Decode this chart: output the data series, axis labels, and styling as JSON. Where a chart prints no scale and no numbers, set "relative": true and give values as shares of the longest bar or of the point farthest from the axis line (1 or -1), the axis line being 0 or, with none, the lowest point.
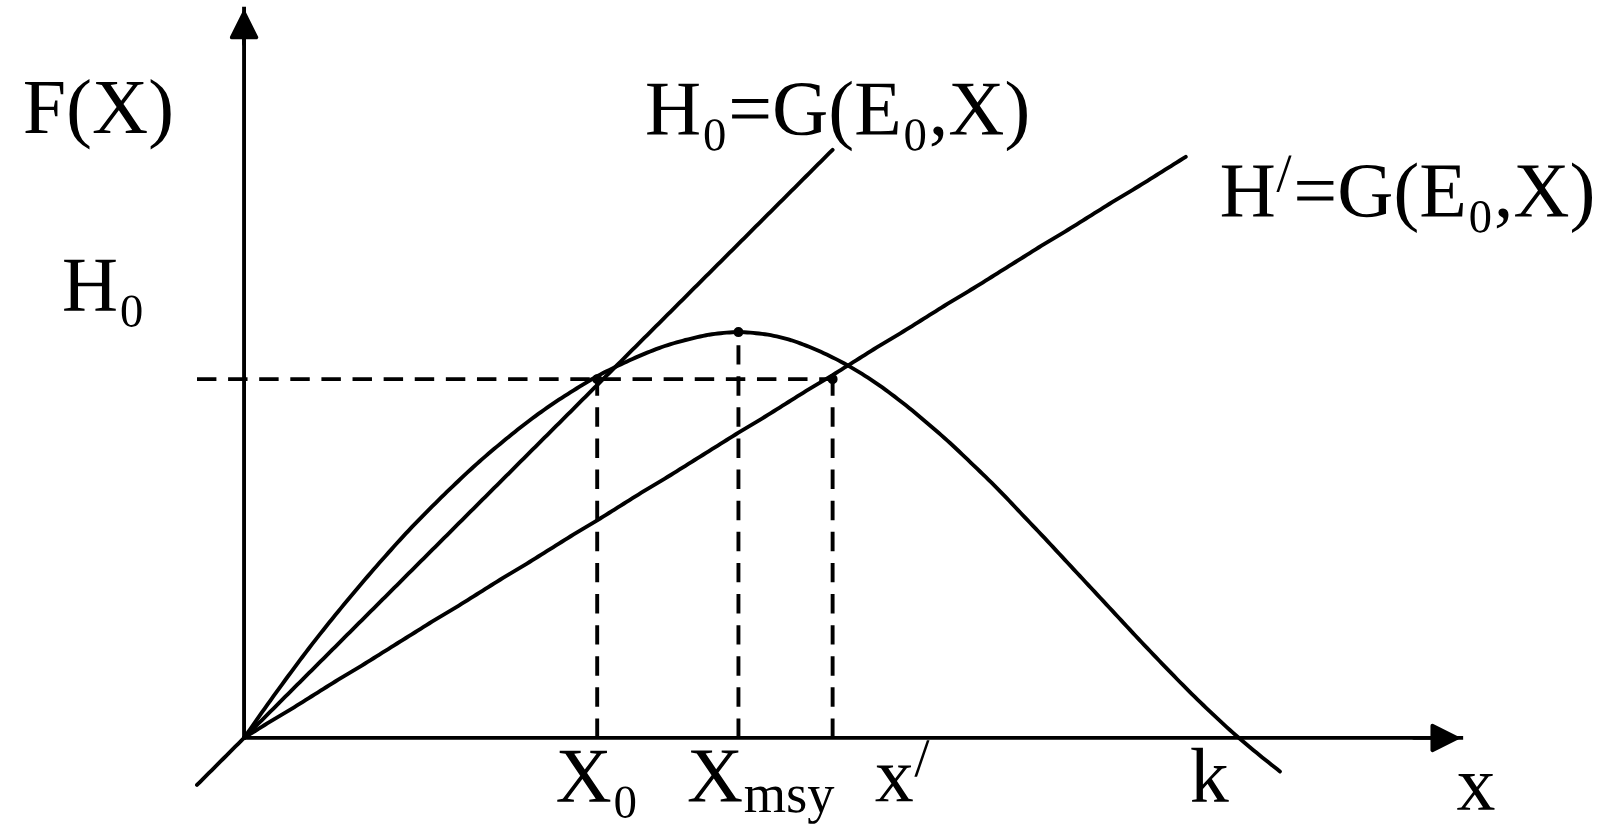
{
  "chart_data": {
    "type": "line",
    "relative": true,
    "xlabel": "x",
    "ylabel": "F(X)",
    "line_style": "solid",
    "categories": [
      null,
      null,
      null,
      null,
      null,
      null,
      null,
      null,
      null,
      null,
      null,
      null,
      null,
      null,
      null,
      null,
      null,
      "X₀",
      null,
      null,
      null,
      null,
      null,
      null,
      "X$_{msy}$",
      null,
      null,
      null,
      null,
      null,
      "x$^{/}$",
      null,
      null,
      null,
      null,
      null,
      null,
      null,
      null,
      null,
      null,
      null,
      null,
      "k",
      null,
      null,
      null
    ],
    "annotations": [
      "H₀"
    ],
    "series": [
      {
        "color": "#000000",
        "values": [
          null,
          null,
          0,
          0.057,
          0.112,
          0.165,
          0.215,
          0.263,
          0.309,
          0.353,
          0.394,
          0.433,
          0.47,
          0.504,
          0.536,
          0.565,
          0.591,
          0.615,
          0.635,
          0.653,
          0.668,
          0.679,
          0.687,
          0.69,
          0.687,
          0.679,
          0.665,
          0.647,
          0.625,
          0.599,
          0.569,
          0.536,
          0.501,
          0.463,
          0.424,
          0.382,
          0.34,
          0.297,
          0.254,
          0.211,
          0.168,
          0.126,
          0.085,
          0.046,
          0.009,
          -0.025,
          -0.057
        ]
      },
      {
        "name": "H₀=G(E₀,X)",
        "color": "#000000",
        "values": [
          -0.08,
          -0.04,
          0,
          0.04,
          0.08,
          0.12,
          0.16,
          0.2,
          0.24,
          0.28,
          0.32,
          0.36,
          0.4,
          0.44,
          0.48,
          0.52,
          0.56,
          0.6,
          0.64,
          0.68,
          0.72,
          0.76,
          0.8,
          0.84,
          0.88,
          0.92,
          0.96,
          1.0,
          null,
          null,
          null,
          null,
          null,
          null,
          null,
          null,
          null,
          null,
          null,
          null,
          null,
          null,
          null,
          null,
          null,
          null,
          null
        ]
      },
      {
        "name": "H$^{/}$=G(E₀,X)",
        "color": "#000000",
        "values": [
          null,
          null,
          0,
          0.025,
          0.049,
          0.074,
          0.099,
          0.123,
          0.148,
          0.173,
          0.198,
          0.222,
          0.247,
          0.272,
          0.296,
          0.321,
          0.346,
          0.37,
          0.395,
          0.42,
          0.444,
          0.469,
          0.494,
          0.519,
          0.543,
          0.568,
          0.593,
          0.617,
          0.642,
          0.667,
          0.691,
          0.716,
          0.741,
          0.765,
          0.79,
          0.815,
          0.84,
          0.864,
          0.889,
          0.914,
          0.938,
          0.963,
          0.988,
          null,
          null,
          null,
          null
        ]
      },
      {
        "color": "#000000",
        "line_style": "dashed",
        "values": [
          0.61,
          0.61,
          0.61,
          0.61,
          0.61,
          0.61,
          0.61,
          0.61,
          0.61,
          0.61,
          0.61,
          0.61,
          0.61,
          0.61,
          0.61,
          0.61,
          0.61,
          0.61,
          0.61,
          0.61,
          0.61,
          0.61,
          0.61,
          0.61,
          0.61,
          0.61,
          0.61,
          0.61,
          null,
          null,
          null,
          null,
          null,
          null,
          null,
          null,
          null,
          null,
          null,
          null,
          null,
          null,
          null,
          null,
          null,
          null,
          null
        ]
      },
      {
        "type": "lollipop",
        "marker": "circle",
        "color": "#000000",
        "line_style": "dashed",
        "values": [
          null,
          null,
          null,
          null,
          null,
          null,
          null,
          null,
          null,
          null,
          null,
          null,
          null,
          null,
          null,
          null,
          null,
          0.61,
          null,
          null,
          null,
          null,
          null,
          0.69,
          null,
          null,
          null,
          0.61,
          null,
          null,
          null,
          null,
          null,
          null,
          null,
          null,
          null,
          null,
          null,
          null,
          null,
          null,
          null,
          null,
          null,
          null,
          null
        ]
      }
    ]
  }
}
